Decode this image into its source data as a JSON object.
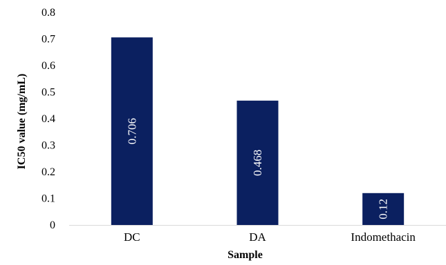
{
  "chart_data": {
    "type": "bar",
    "categories": [
      "DC",
      "DA",
      "Indomethacin"
    ],
    "values": [
      0.706,
      0.468,
      0.12
    ],
    "data_labels": [
      "0.706",
      "0.468",
      "0.12"
    ],
    "ylabel": "IC50 value (mg/mL)",
    "xlabel": "Sample",
    "ylim": [
      0,
      0.8
    ],
    "yticks": [
      0,
      0.1,
      0.2,
      0.3,
      0.4,
      0.5,
      0.6,
      0.7,
      0.8
    ],
    "ytick_labels": [
      "0",
      "0.1",
      "0.2",
      "0.3",
      "0.4",
      "0.5",
      "0.6",
      "0.7",
      "0.8"
    ],
    "grid": false,
    "legend": "none",
    "bar_color": "#0b2060",
    "data_label_color": "#ffffff",
    "axis_color": "#d9d9d9",
    "text_color": "#000000"
  }
}
